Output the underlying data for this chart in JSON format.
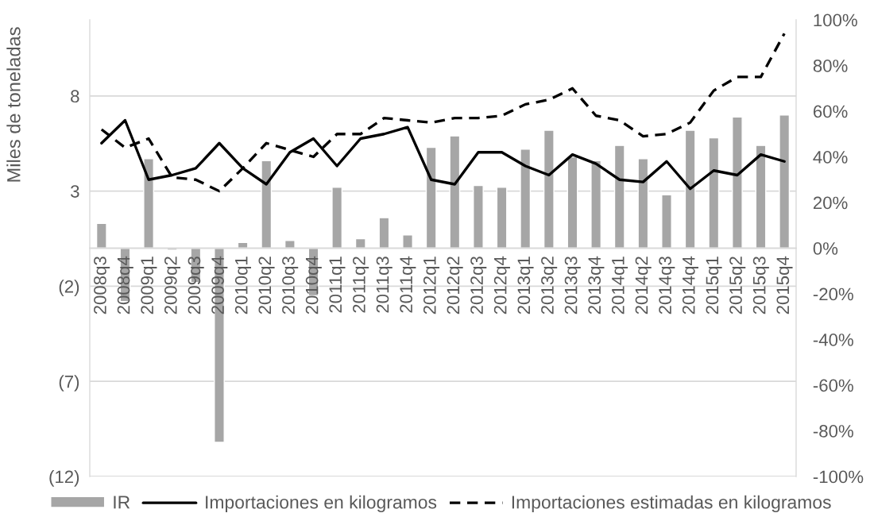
{
  "chart_data": {
    "type": "bar",
    "ylabel": "Miles de toneladas",
    "categories": [
      "2008q3",
      "2008q4",
      "2009q1",
      "2009q2",
      "2009q3",
      "2009q4",
      "2010q1",
      "2010q2",
      "2010q3",
      "2010q4",
      "2011q1",
      "2011q2",
      "2011q3",
      "2011q4",
      "2012q1",
      "2012q2",
      "2012q3",
      "2012q4",
      "2013q1",
      "2013q2",
      "2013q3",
      "2013q4",
      "2014q1",
      "2014q2",
      "2014q3",
      "2014q4",
      "2015q1",
      "2015q2",
      "2015q3",
      "2015q4"
    ],
    "series": [
      {
        "name": "IR",
        "color": "#a6a6a6",
        "values": [
          1.3,
          -2.8,
          4.7,
          -0.1,
          -1.8,
          -10.2,
          0.3,
          4.6,
          0.4,
          -2.5,
          3.2,
          0.5,
          1.6,
          0.7,
          5.3,
          5.9,
          3.3,
          3.2,
          5.2,
          6.2,
          4.8,
          4.6,
          5.4,
          4.7,
          2.8,
          6.2,
          5.8,
          6.9,
          5.4,
          7.0
        ]
      },
      {
        "name": "Importaciones en kilogramos",
        "type": "line",
        "axis": "y2",
        "line_style": "solid",
        "color": "#000000",
        "values": [
          46,
          56,
          30,
          32,
          35,
          46,
          35,
          28,
          42,
          48,
          36,
          48,
          50,
          53,
          30,
          28,
          42,
          42,
          36,
          32,
          41,
          37,
          30,
          29,
          38,
          26,
          34,
          32,
          41,
          38
        ]
      },
      {
        "name": "Importaciones estimadas en kilogramos",
        "type": "line",
        "axis": "y2",
        "line_style": "dashed",
        "color": "#000000",
        "values": [
          52,
          44,
          48,
          31,
          30,
          25,
          35,
          46,
          43,
          40,
          50,
          50,
          57,
          56,
          55,
          57,
          57,
          58,
          63,
          65,
          70,
          58,
          56,
          49,
          50,
          55,
          69,
          75,
          75,
          94
        ]
      }
    ],
    "ylim": [
      -12,
      12
    ],
    "yticks": [
      {
        "value": -12,
        "label": "(12)"
      },
      {
        "value": -7,
        "label": "(7)"
      },
      {
        "value": -2,
        "label": "(2)"
      },
      3,
      8
    ],
    "y2lim": [
      -100,
      100
    ],
    "y2ticks": [
      {
        "value": -100,
        "label": "-100%"
      },
      {
        "value": -80,
        "label": "-80%"
      },
      {
        "value": -60,
        "label": "-60%"
      },
      {
        "value": -40,
        "label": "-40%"
      },
      {
        "value": -20,
        "label": "-20%"
      },
      {
        "value": 0,
        "label": "0%"
      },
      {
        "value": 20,
        "label": "20%"
      },
      {
        "value": 40,
        "label": "40%"
      },
      {
        "value": 60,
        "label": "60%"
      },
      {
        "value": 80,
        "label": "80%"
      },
      {
        "value": 100,
        "label": "100%"
      }
    ],
    "grid": "y",
    "legend": "bottom"
  }
}
